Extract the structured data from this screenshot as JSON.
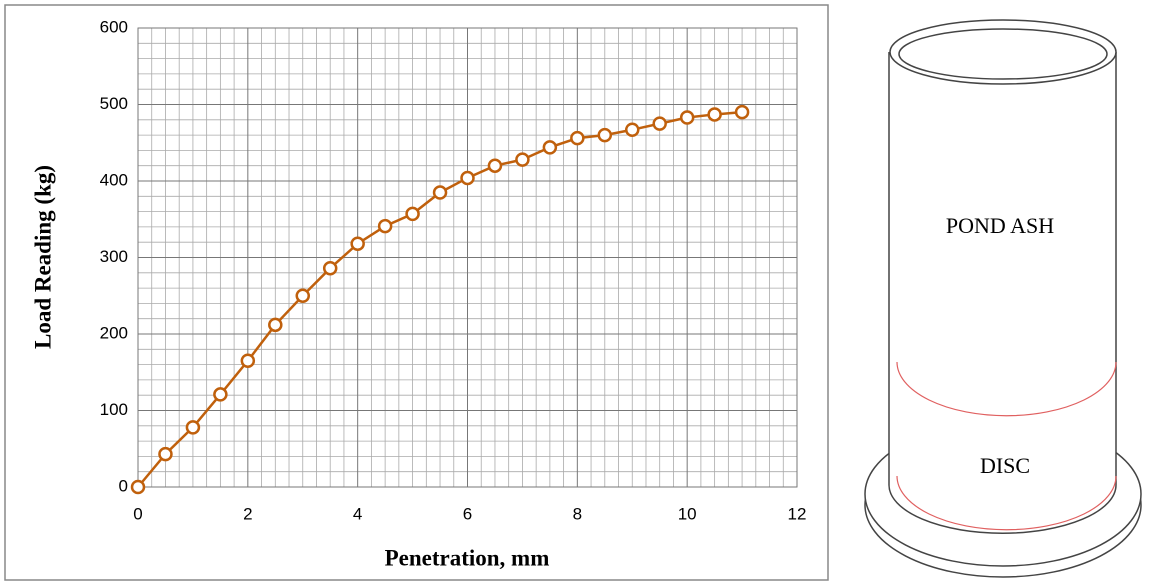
{
  "chart_data": {
    "type": "line",
    "x_label": "Penetration, mm",
    "y_label": "Load Reading (kg)",
    "x": [
      0,
      0.5,
      1,
      1.5,
      2,
      2.5,
      3,
      3.5,
      4,
      4.5,
      5,
      5.5,
      6,
      6.5,
      7,
      7.5,
      8,
      8.5,
      9,
      9.5,
      10,
      10.5,
      11
    ],
    "series": [
      {
        "color": "#c0600c",
        "values": [
          0,
          43,
          78,
          121,
          165,
          212,
          250,
          286,
          318,
          341,
          357,
          385,
          404,
          420,
          428,
          444,
          456,
          460,
          467,
          475,
          483,
          487,
          490
        ]
      }
    ],
    "xlim": [
      0,
      12
    ],
    "xticks": [
      0,
      2,
      4,
      6,
      8,
      10,
      12
    ],
    "ylim": [
      0,
      600
    ],
    "yticks": [
      0,
      100,
      200,
      300,
      400,
      500,
      600
    ],
    "grid": true,
    "minor_grid": true
  },
  "diagram": {
    "labels": [
      "POND ASH",
      "DISC"
    ]
  }
}
